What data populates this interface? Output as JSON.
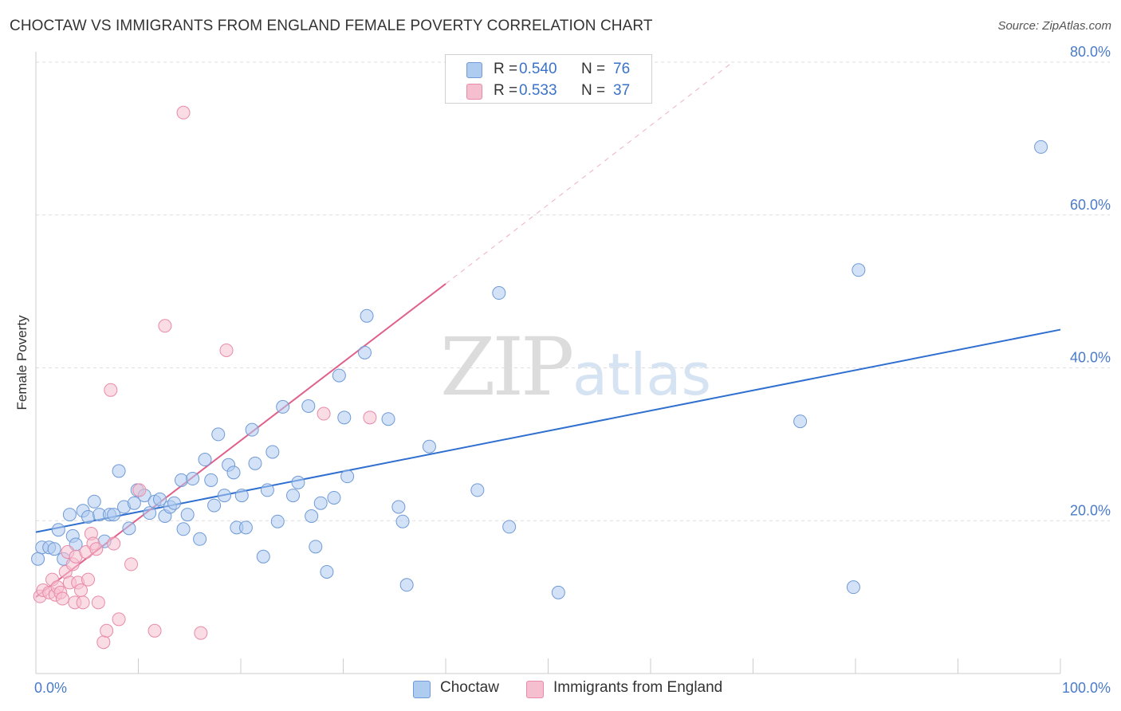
{
  "header": {
    "title": "CHOCTAW VS IMMIGRANTS FROM ENGLAND FEMALE POVERTY CORRELATION CHART",
    "source": "Source: ZipAtlas.com"
  },
  "watermark": {
    "zip": "ZIP",
    "atlas": "atlas"
  },
  "legend": {
    "rows": [
      {
        "r_label": "R =",
        "r_value": "0.540",
        "n_label": "N =",
        "n_value": "76"
      },
      {
        "r_label": "R =",
        "r_value": "0.533",
        "n_label": "N =",
        "n_value": "37"
      }
    ]
  },
  "bottom_legend": {
    "series1": "Choctaw",
    "series2": "Immigrants from England"
  },
  "colors": {
    "blue_fill": "#aecbf0",
    "blue_stroke": "#6f9ad6",
    "blue_line": "#2f6fcf",
    "pink_fill": "#f6bfd0",
    "pink_stroke": "#e98aa8",
    "pink_line": "#e0608a",
    "grid": "#dddddd",
    "tick_text": "#4a7bc8"
  },
  "chart_data": {
    "type": "scatter",
    "title": "CHOCTAW VS IMMIGRANTS FROM ENGLAND FEMALE POVERTY CORRELATION CHART",
    "xlabel": "",
    "ylabel": "Female Poverty",
    "xlim": [
      0,
      100
    ],
    "ylim": [
      0,
      80
    ],
    "x_tick_labels": [
      {
        "value": 0,
        "label": "0.0%"
      },
      {
        "value": 100,
        "label": "100.0%"
      }
    ],
    "x_minor_ticks": [
      0,
      10,
      20,
      30,
      40,
      50,
      60,
      70,
      80,
      90,
      100
    ],
    "y_tick_labels": [
      {
        "value": 20,
        "label": "20.0%"
      },
      {
        "value": 40,
        "label": "40.0%"
      },
      {
        "value": 60,
        "label": "60.0%"
      },
      {
        "value": 80,
        "label": "80.0%"
      }
    ],
    "series": [
      {
        "name": "Choctaw",
        "color": "blue",
        "trend": {
          "x0": 0,
          "y0": 18.5,
          "x1": 100,
          "y1": 45.0
        },
        "points": [
          [
            0.6,
            16.5
          ],
          [
            1.3,
            16.5
          ],
          [
            1.8,
            16.3
          ],
          [
            2.2,
            18.8
          ],
          [
            2.7,
            15.0
          ],
          [
            3.3,
            20.8
          ],
          [
            3.6,
            18.0
          ],
          [
            3.9,
            16.9
          ],
          [
            4.6,
            21.3
          ],
          [
            5.1,
            20.5
          ],
          [
            5.7,
            22.5
          ],
          [
            6.2,
            20.8
          ],
          [
            6.7,
            17.3
          ],
          [
            7.2,
            20.8
          ],
          [
            7.6,
            20.8
          ],
          [
            8.1,
            26.5
          ],
          [
            8.6,
            21.8
          ],
          [
            9.1,
            19.0
          ],
          [
            9.6,
            22.3
          ],
          [
            9.9,
            24.0
          ],
          [
            10.6,
            23.3
          ],
          [
            11.1,
            21.0
          ],
          [
            11.6,
            22.5
          ],
          [
            12.1,
            22.8
          ],
          [
            12.6,
            20.6
          ],
          [
            13.1,
            21.8
          ],
          [
            13.5,
            22.3
          ],
          [
            14.2,
            25.3
          ],
          [
            14.4,
            18.9
          ],
          [
            14.8,
            20.8
          ],
          [
            15.3,
            25.5
          ],
          [
            16.0,
            17.6
          ],
          [
            16.5,
            28.0
          ],
          [
            17.1,
            25.3
          ],
          [
            17.4,
            22.0
          ],
          [
            17.8,
            31.3
          ],
          [
            18.4,
            23.3
          ],
          [
            18.8,
            27.3
          ],
          [
            19.3,
            26.3
          ],
          [
            19.6,
            19.1
          ],
          [
            20.1,
            23.3
          ],
          [
            20.5,
            19.1
          ],
          [
            21.1,
            31.9
          ],
          [
            21.4,
            27.5
          ],
          [
            22.2,
            15.3
          ],
          [
            22.6,
            24.0
          ],
          [
            23.1,
            29.0
          ],
          [
            23.6,
            19.9
          ],
          [
            24.1,
            34.9
          ],
          [
            25.1,
            23.3
          ],
          [
            25.6,
            25.0
          ],
          [
            26.6,
            35.0
          ],
          [
            26.9,
            20.6
          ],
          [
            27.3,
            16.6
          ],
          [
            27.8,
            22.3
          ],
          [
            28.4,
            13.3
          ],
          [
            29.1,
            23.0
          ],
          [
            29.6,
            39.0
          ],
          [
            30.1,
            33.5
          ],
          [
            30.4,
            25.8
          ],
          [
            32.1,
            42.0
          ],
          [
            32.3,
            46.8
          ],
          [
            34.4,
            33.3
          ],
          [
            35.4,
            21.8
          ],
          [
            35.8,
            19.9
          ],
          [
            36.2,
            11.6
          ],
          [
            38.4,
            29.7
          ],
          [
            43.1,
            24.0
          ],
          [
            45.2,
            49.8
          ],
          [
            46.2,
            19.2
          ],
          [
            51.0,
            10.6
          ],
          [
            74.6,
            33.0
          ],
          [
            79.8,
            11.3
          ],
          [
            80.3,
            52.8
          ],
          [
            98.1,
            68.9
          ],
          [
            0.2,
            15.0
          ]
        ]
      },
      {
        "name": "Immigrants from England",
        "color": "pink",
        "trend": {
          "x0": 0,
          "y0": 10.0,
          "x1": 40,
          "y1": 51.0
        },
        "trend_dashed": {
          "x0": 40,
          "y0": 51.0,
          "x1": 68,
          "y1": 80.0
        },
        "points": [
          [
            0.4,
            10.1
          ],
          [
            0.7,
            10.9
          ],
          [
            1.3,
            10.6
          ],
          [
            1.6,
            12.3
          ],
          [
            1.9,
            10.3
          ],
          [
            2.1,
            11.3
          ],
          [
            2.4,
            10.6
          ],
          [
            2.6,
            9.8
          ],
          [
            2.9,
            13.3
          ],
          [
            3.1,
            15.9
          ],
          [
            3.3,
            11.9
          ],
          [
            3.6,
            14.3
          ],
          [
            3.8,
            9.3
          ],
          [
            3.9,
            15.3
          ],
          [
            4.1,
            11.9
          ],
          [
            4.4,
            10.9
          ],
          [
            4.6,
            9.3
          ],
          [
            4.9,
            15.9
          ],
          [
            5.1,
            12.3
          ],
          [
            5.4,
            18.3
          ],
          [
            5.6,
            17.0
          ],
          [
            5.9,
            16.3
          ],
          [
            6.1,
            9.3
          ],
          [
            6.6,
            4.1
          ],
          [
            6.9,
            5.6
          ],
          [
            7.3,
            37.1
          ],
          [
            7.6,
            17.0
          ],
          [
            8.1,
            7.1
          ],
          [
            9.3,
            14.3
          ],
          [
            10.1,
            24.0
          ],
          [
            11.6,
            5.6
          ],
          [
            12.6,
            45.5
          ],
          [
            14.4,
            73.4
          ],
          [
            16.1,
            5.3
          ],
          [
            18.6,
            42.3
          ],
          [
            28.1,
            34.0
          ],
          [
            32.6,
            33.5
          ]
        ]
      }
    ]
  }
}
